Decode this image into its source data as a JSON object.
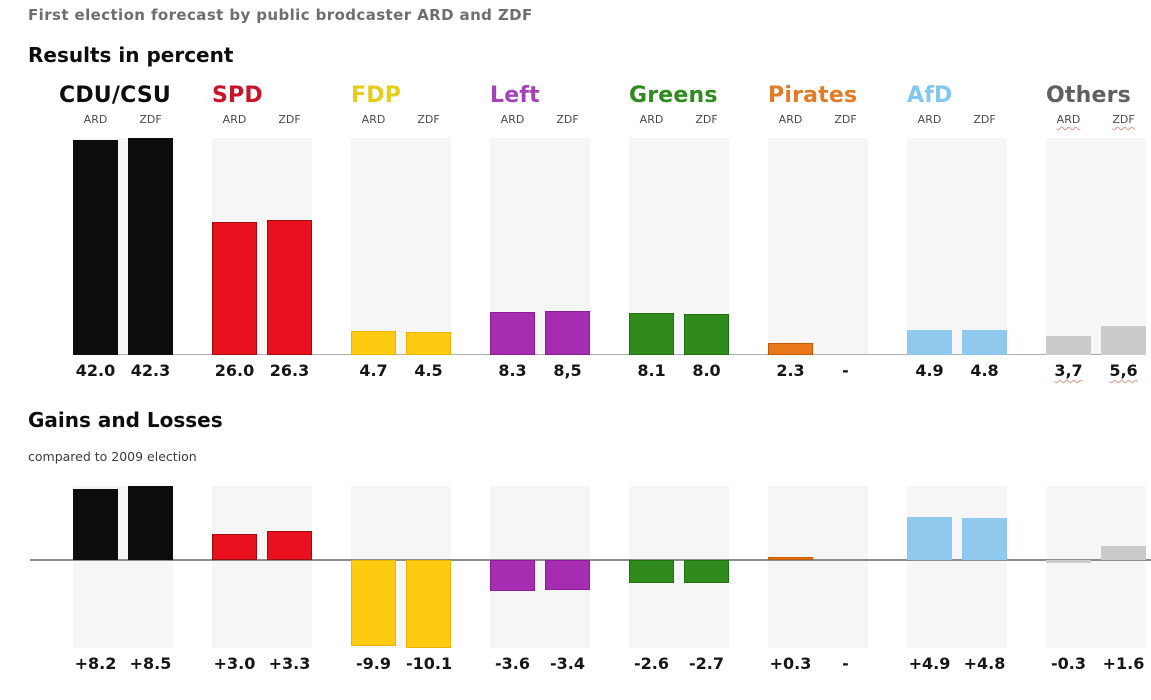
{
  "title": "First election forecast by public brodcaster ARD and ZDF",
  "results_section": {
    "heading": "Results in percent"
  },
  "gains_section": {
    "heading": "Gains and Losses",
    "subheading": "compared to 2009 election"
  },
  "broadcasters": [
    "ARD",
    "ZDF"
  ],
  "parties": [
    {
      "name": "CDU/CSU",
      "label_color": "#0d0d0d",
      "bar_color": "#0d0d0d",
      "edge_color": null,
      "spellcheck_underline": false
    },
    {
      "name": "SPD",
      "label_color": "#c81328",
      "bar_color": "#e8111d",
      "edge_color": "#9c0c12",
      "spellcheck_underline": false
    },
    {
      "name": "FDP",
      "label_color": "#e4ce1b",
      "bar_color": "#ffcb11",
      "edge_color": "#f0b400",
      "spellcheck_underline": false
    },
    {
      "name": "Left",
      "label_color": "#a343b5",
      "bar_color": "#a62db2",
      "edge_color": "#8a1e96",
      "spellcheck_underline": false
    },
    {
      "name": "Greens",
      "label_color": "#2f8b1d",
      "bar_color": "#2f8c1c",
      "edge_color": "#206f10",
      "spellcheck_underline": false
    },
    {
      "name": "Pirates",
      "label_color": "#e07b26",
      "bar_color": "#e87817",
      "edge_color": "#c05a05",
      "spellcheck_underline": false
    },
    {
      "name": "AfD",
      "label_color": "#82c7ef",
      "bar_color": "#8fc9ee",
      "edge_color": null,
      "spellcheck_underline": false
    },
    {
      "name": "Others",
      "label_color": "#5f5f5f",
      "bar_color": "#cbcbcb",
      "edge_color": null,
      "spellcheck_underline": true
    }
  ],
  "chart_data": [
    {
      "type": "bar",
      "title": "Results in percent",
      "categories": [
        "CDU/CSU",
        "SPD",
        "FDP",
        "Left",
        "Greens",
        "Pirates",
        "AfD",
        "Others"
      ],
      "series": [
        {
          "name": "ARD",
          "values": [
            42.0,
            26.0,
            4.7,
            8.3,
            8.1,
            2.3,
            4.9,
            3.7
          ]
        },
        {
          "name": "ZDF",
          "values": [
            42.3,
            26.3,
            4.5,
            8.5,
            8.0,
            null,
            4.8,
            5.6
          ]
        }
      ],
      "value_labels": [
        [
          "42.0",
          "42.3"
        ],
        [
          "26.0",
          "26.3"
        ],
        [
          "4.7",
          "4.5"
        ],
        [
          "8.3",
          "8,5"
        ],
        [
          "8.1",
          "8.0"
        ],
        [
          "2.3",
          "-"
        ],
        [
          "4.9",
          "4.8"
        ],
        [
          "3,7",
          "5,6"
        ]
      ],
      "ylim": [
        0,
        42.3
      ],
      "grid": false,
      "legend_position": "per-column ARD/ZDF labels"
    },
    {
      "type": "bar",
      "title": "Gains and Losses",
      "subtitle": "compared to 2009 election",
      "categories": [
        "CDU/CSU",
        "SPD",
        "FDP",
        "Left",
        "Greens",
        "Pirates",
        "AfD",
        "Others"
      ],
      "series": [
        {
          "name": "ARD",
          "values": [
            8.2,
            3.0,
            -9.9,
            -3.6,
            -2.6,
            0.3,
            4.9,
            -0.3
          ]
        },
        {
          "name": "ZDF",
          "values": [
            8.5,
            3.3,
            -10.1,
            -3.4,
            -2.7,
            null,
            4.8,
            1.6
          ]
        }
      ],
      "value_labels": [
        [
          "+8.2",
          "+8.5"
        ],
        [
          "+3.0",
          "+3.3"
        ],
        [
          "-9.9",
          "-10.1"
        ],
        [
          "-3.6",
          "-3.4"
        ],
        [
          "-2.6",
          "-2.7"
        ],
        [
          "+0.3",
          "-"
        ],
        [
          "+4.9",
          "+4.8"
        ],
        [
          "-0.3",
          "+1.6"
        ]
      ],
      "ylim": [
        -10.1,
        8.5
      ],
      "grid": false,
      "baseline": 0
    }
  ]
}
